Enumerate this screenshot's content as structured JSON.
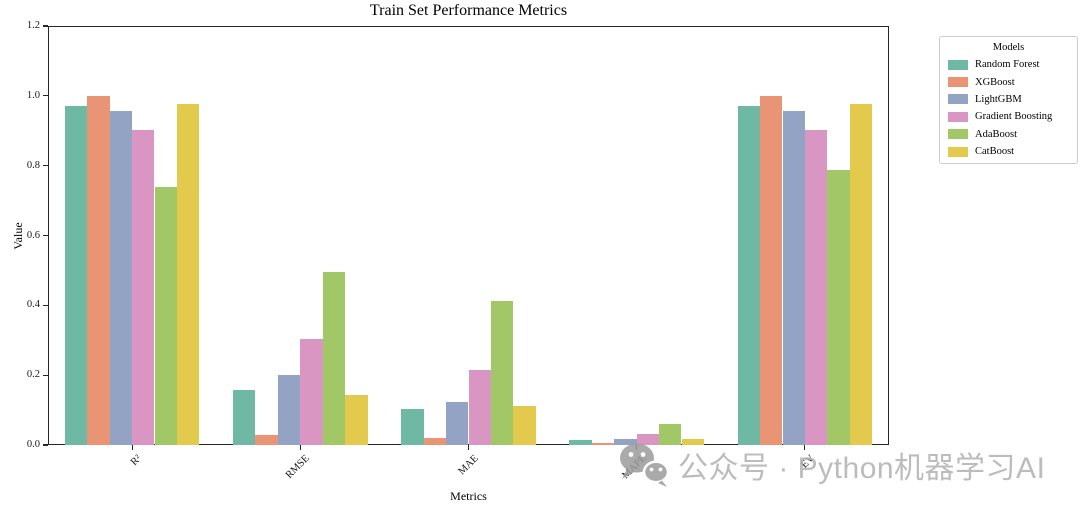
{
  "chart_data": {
    "type": "bar",
    "title": "Train Set Performance Metrics",
    "xlabel": "Metrics",
    "ylabel": "Value",
    "ylim": [
      0,
      1.2
    ],
    "yticks": [
      "0.0",
      "0.2",
      "0.4",
      "0.6",
      "0.8",
      "1.0",
      "1.2"
    ],
    "categories": [
      "R²",
      "RMSE",
      "MAE",
      "MAPE",
      "EV"
    ],
    "grid": false,
    "legend_title": "Models",
    "legend_position": "outside-right",
    "spine_color": "#262626",
    "series": [
      {
        "name": "Random Forest",
        "color": "#6fb8a4",
        "values": [
          0.972,
          0.158,
          0.102,
          0.015,
          0.972
        ]
      },
      {
        "name": "XGBoost",
        "color": "#e99475",
        "values": [
          1.0,
          0.028,
          0.021,
          0.006,
          1.0
        ]
      },
      {
        "name": "LightGBM",
        "color": "#93a3c4",
        "values": [
          0.956,
          0.201,
          0.124,
          0.018,
          0.956
        ]
      },
      {
        "name": "Gradient Boosting",
        "color": "#da96c3",
        "values": [
          0.903,
          0.304,
          0.216,
          0.032,
          0.903
        ]
      },
      {
        "name": "AdaBoost",
        "color": "#a2c766",
        "values": [
          0.74,
          0.497,
          0.413,
          0.061,
          0.788
        ]
      },
      {
        "name": "CatBoost",
        "color": "#e3ca4d",
        "values": [
          0.977,
          0.144,
          0.112,
          0.016,
          0.977
        ]
      }
    ]
  },
  "watermark": {
    "icon": "wechat-icon",
    "text": "公众号 · Python机器学习AI",
    "text_color": "#b2b1b1",
    "icon_color": "#9c9c9c"
  }
}
